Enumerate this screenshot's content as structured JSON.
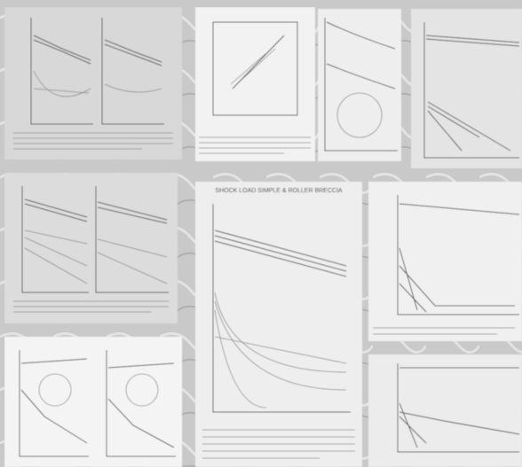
{
  "panel_title": "SHOCK LOAD SIMPLE & ROLLER BRECCIA"
}
